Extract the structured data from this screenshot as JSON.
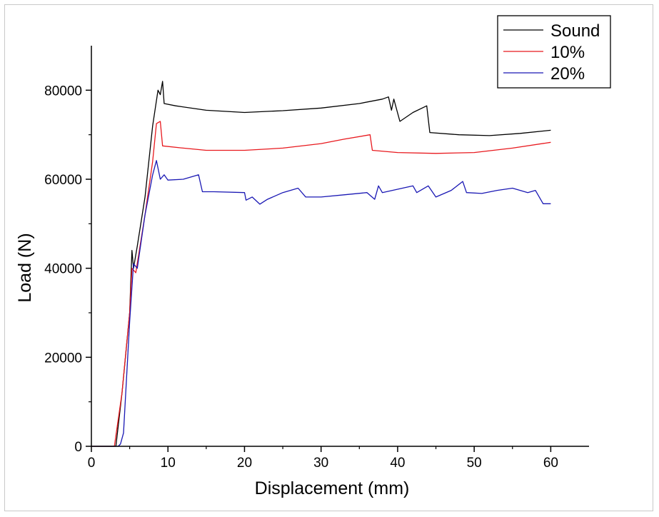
{
  "chart_data": {
    "type": "line",
    "xlabel": "Displacement (mm)",
    "ylabel": "Load (N)",
    "xlim": [
      0,
      65
    ],
    "ylim": [
      0,
      90000
    ],
    "xticks": [
      0,
      10,
      20,
      30,
      40,
      50,
      60
    ],
    "yticks": [
      0,
      20000,
      40000,
      60000,
      80000
    ],
    "legend_position": "top-right",
    "grid": false,
    "series": [
      {
        "name": "Sound",
        "color": "#000000",
        "points": [
          [
            0,
            0
          ],
          [
            3.2,
            0
          ],
          [
            4.0,
            12000
          ],
          [
            5.0,
            30000
          ],
          [
            5.3,
            44000
          ],
          [
            5.5,
            40000
          ],
          [
            6.0,
            45000
          ],
          [
            7.0,
            56000
          ],
          [
            8.0,
            72000
          ],
          [
            8.7,
            80000
          ],
          [
            9.0,
            79000
          ],
          [
            9.3,
            82000
          ],
          [
            9.5,
            77000
          ],
          [
            11,
            76500
          ],
          [
            15,
            75500
          ],
          [
            20,
            75000
          ],
          [
            25,
            75400
          ],
          [
            30,
            76000
          ],
          [
            35,
            77000
          ],
          [
            38,
            78000
          ],
          [
            38.8,
            78500
          ],
          [
            39.2,
            75500
          ],
          [
            39.5,
            78000
          ],
          [
            40.3,
            73000
          ],
          [
            42,
            75000
          ],
          [
            43.8,
            76500
          ],
          [
            44.2,
            70500
          ],
          [
            48,
            70000
          ],
          [
            52,
            69800
          ],
          [
            56,
            70300
          ],
          [
            60,
            71000
          ]
        ]
      },
      {
        "name": "10%",
        "color": "#e8191e",
        "points": [
          [
            0,
            0
          ],
          [
            3.0,
            0
          ],
          [
            4.0,
            12000
          ],
          [
            5.0,
            30000
          ],
          [
            5.3,
            40000
          ],
          [
            5.8,
            39000
          ],
          [
            7.0,
            52000
          ],
          [
            8.0,
            64000
          ],
          [
            8.5,
            72500
          ],
          [
            9.0,
            73000
          ],
          [
            9.3,
            67500
          ],
          [
            12,
            67000
          ],
          [
            15,
            66500
          ],
          [
            20,
            66500
          ],
          [
            25,
            67000
          ],
          [
            30,
            68000
          ],
          [
            33,
            69000
          ],
          [
            36.4,
            70000
          ],
          [
            36.7,
            66500
          ],
          [
            40,
            66000
          ],
          [
            45,
            65800
          ],
          [
            50,
            66000
          ],
          [
            55,
            67000
          ],
          [
            60,
            68300
          ]
        ]
      },
      {
        "name": "20%",
        "color": "#1a18b4",
        "points": [
          [
            0,
            0
          ],
          [
            3.5,
            0
          ],
          [
            3.8,
            500
          ],
          [
            4.2,
            3000
          ],
          [
            5.0,
            28000
          ],
          [
            5.5,
            41000
          ],
          [
            6.0,
            40000
          ],
          [
            7.0,
            52000
          ],
          [
            8.0,
            61000
          ],
          [
            8.5,
            64200
          ],
          [
            9.0,
            60000
          ],
          [
            9.5,
            61000
          ],
          [
            10,
            59800
          ],
          [
            12,
            60000
          ],
          [
            14,
            61000
          ],
          [
            14.5,
            57200
          ],
          [
            16,
            57200
          ],
          [
            20,
            57000
          ],
          [
            20.2,
            55300
          ],
          [
            21,
            56000
          ],
          [
            22,
            54400
          ],
          [
            23,
            55500
          ],
          [
            25,
            57000
          ],
          [
            27,
            58000
          ],
          [
            28,
            56000
          ],
          [
            30,
            56000
          ],
          [
            33,
            56500
          ],
          [
            36,
            57000
          ],
          [
            37,
            55500
          ],
          [
            37.5,
            58500
          ],
          [
            38,
            57000
          ],
          [
            42,
            58500
          ],
          [
            42.5,
            57000
          ],
          [
            44,
            58500
          ],
          [
            45,
            56000
          ],
          [
            47,
            57500
          ],
          [
            48.5,
            59500
          ],
          [
            49,
            57000
          ],
          [
            51,
            56800
          ],
          [
            53,
            57500
          ],
          [
            55,
            58000
          ],
          [
            57,
            57000
          ],
          [
            58,
            57500
          ],
          [
            59,
            54500
          ],
          [
            60,
            54500
          ]
        ]
      }
    ]
  }
}
